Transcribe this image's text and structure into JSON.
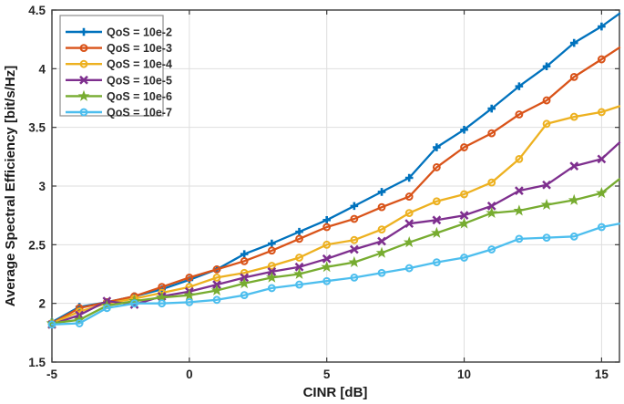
{
  "figure": {
    "background": "#ffffff",
    "axis_box_color": "#3b3b3b",
    "grid_color": "#dedede",
    "legend_border_color": "#8c8c8c"
  },
  "chart_data": {
    "type": "line",
    "title": "",
    "xlabel": "CINR [dB]",
    "ylabel": "Average Spectral Efficiency [bit/s/Hz]",
    "xlim": [
      -5,
      15.65
    ],
    "ylim": [
      1.5,
      4.5
    ],
    "xticks": [
      -5,
      0,
      5,
      10,
      15
    ],
    "xtick_labels": [
      "-5",
      "0",
      "5",
      "10",
      "15"
    ],
    "yticks": [
      1.5,
      2,
      2.5,
      3,
      3.5,
      4,
      4.5
    ],
    "ytick_labels": [
      "1.5",
      "2",
      "2.5",
      "3",
      "3.5",
      "4",
      "4.5"
    ],
    "grid": true,
    "legend_position": "top-left",
    "x": [
      -5,
      -4,
      -3,
      -2,
      -1,
      0,
      1,
      2,
      3,
      4,
      5,
      6,
      7,
      8,
      9,
      10,
      11,
      12,
      13,
      14,
      15,
      15.65
    ],
    "series": [
      {
        "name": "QoS = 10e-2",
        "color": "#0072BD",
        "marker": "plus",
        "values": [
          1.84,
          1.97,
          2.01,
          2.06,
          2.12,
          2.2,
          2.29,
          2.42,
          2.51,
          2.61,
          2.71,
          2.83,
          2.95,
          3.07,
          3.33,
          3.48,
          3.66,
          3.85,
          4.02,
          4.22,
          4.36,
          4.47
        ]
      },
      {
        "name": "QoS = 10e-3",
        "color": "#D95319",
        "marker": "circle",
        "values": [
          1.83,
          1.96,
          2.01,
          2.06,
          2.14,
          2.22,
          2.29,
          2.36,
          2.45,
          2.55,
          2.65,
          2.72,
          2.82,
          2.91,
          3.16,
          3.33,
          3.45,
          3.61,
          3.73,
          3.93,
          4.08,
          4.18
        ]
      },
      {
        "name": "QoS = 10e-4",
        "color": "#EDB120",
        "marker": "circle",
        "values": [
          1.83,
          1.93,
          2.0,
          2.04,
          2.09,
          2.14,
          2.22,
          2.26,
          2.32,
          2.39,
          2.5,
          2.54,
          2.63,
          2.77,
          2.87,
          2.93,
          3.03,
          3.23,
          3.53,
          3.59,
          3.63,
          3.68
        ]
      },
      {
        "name": "QoS = 10e-5",
        "color": "#7E2F8E",
        "marker": "x",
        "values": [
          1.82,
          1.9,
          2.02,
          1.99,
          2.06,
          2.1,
          2.16,
          2.22,
          2.27,
          2.31,
          2.38,
          2.46,
          2.53,
          2.68,
          2.71,
          2.75,
          2.83,
          2.96,
          3.01,
          3.17,
          3.23,
          3.37
        ]
      },
      {
        "name": "QoS = 10e-6",
        "color": "#77AC30",
        "marker": "star",
        "values": [
          1.83,
          1.86,
          1.98,
          2.02,
          2.05,
          2.07,
          2.11,
          2.17,
          2.22,
          2.25,
          2.31,
          2.35,
          2.43,
          2.52,
          2.6,
          2.68,
          2.77,
          2.79,
          2.84,
          2.88,
          2.94,
          3.06
        ]
      },
      {
        "name": "QoS = 10e-7",
        "color": "#4DBEEE",
        "marker": "circle",
        "values": [
          1.82,
          1.83,
          1.96,
          2.0,
          2.0,
          2.01,
          2.03,
          2.07,
          2.13,
          2.16,
          2.19,
          2.22,
          2.26,
          2.3,
          2.35,
          2.39,
          2.46,
          2.55,
          2.56,
          2.57,
          2.65,
          2.68
        ]
      }
    ]
  }
}
